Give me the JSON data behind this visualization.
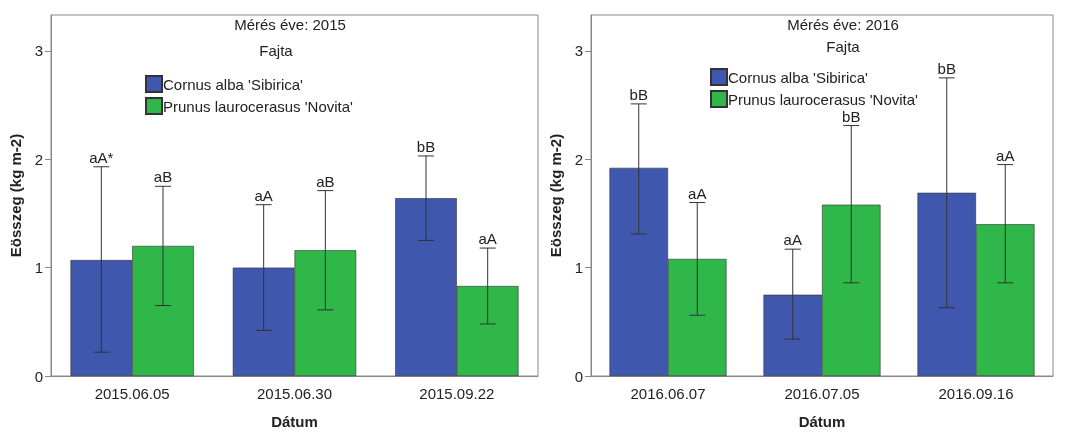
{
  "chart_data": [
    {
      "type": "bar",
      "title": "Mérés éve: 2015",
      "legend_title": "Fajta",
      "xlabel": "Dátum",
      "ylabel": "Eösszeg (kg m-2)",
      "categories": [
        "2015.06.05",
        "2015.06.30",
        "2015.09.22"
      ],
      "series": [
        {
          "name": "Cornus alba 'Sibirica'",
          "color": "#3f57ad",
          "values": [
            1.07,
            1.0,
            1.64
          ],
          "errors": [
            [
              0.22,
              1.93
            ],
            [
              0.42,
              1.58
            ],
            [
              1.25,
              2.03
            ]
          ]
        },
        {
          "name": "Prunus laurocerasus 'Novita'",
          "color": "#2fb74a",
          "values": [
            1.2,
            1.16,
            0.83
          ],
          "errors": [
            [
              0.65,
              1.75
            ],
            [
              0.61,
              1.71
            ],
            [
              0.48,
              1.18
            ]
          ]
        }
      ],
      "annotations": [
        "aA*",
        "aA",
        "bB",
        "aB",
        "aB",
        "aA"
      ],
      "ylim": [
        0,
        3.33
      ],
      "yticks": [
        0,
        1,
        2,
        3
      ],
      "grid": false,
      "legend": "top"
    },
    {
      "type": "bar",
      "title": "Mérés éve: 2016",
      "legend_title": "Fajta",
      "xlabel": "Dátum",
      "ylabel": "Eösszeg (kg m-2)",
      "categories": [
        "2016.06.07",
        "2016.07.05",
        "2016.09.16"
      ],
      "series": [
        {
          "name": "Cornus alba 'Sibirica'",
          "color": "#3f57ad",
          "values": [
            1.92,
            0.75,
            1.69
          ],
          "errors": [
            [
              1.31,
              2.51
            ],
            [
              0.34,
              1.17
            ],
            [
              0.63,
              2.75
            ]
          ]
        },
        {
          "name": "Prunus laurocerasus 'Novita'",
          "color": "#2fb74a",
          "values": [
            1.08,
            1.58,
            1.4
          ],
          "errors": [
            [
              0.56,
              1.6
            ],
            [
              0.86,
              2.31
            ],
            [
              0.86,
              1.95
            ]
          ]
        }
      ],
      "annotations": [
        "bB",
        "aA",
        "bB",
        "aA",
        "bB",
        "aA"
      ],
      "ylim": [
        0,
        3.33
      ],
      "yticks": [
        0,
        1,
        2,
        3
      ],
      "grid": false,
      "legend": "top"
    }
  ]
}
